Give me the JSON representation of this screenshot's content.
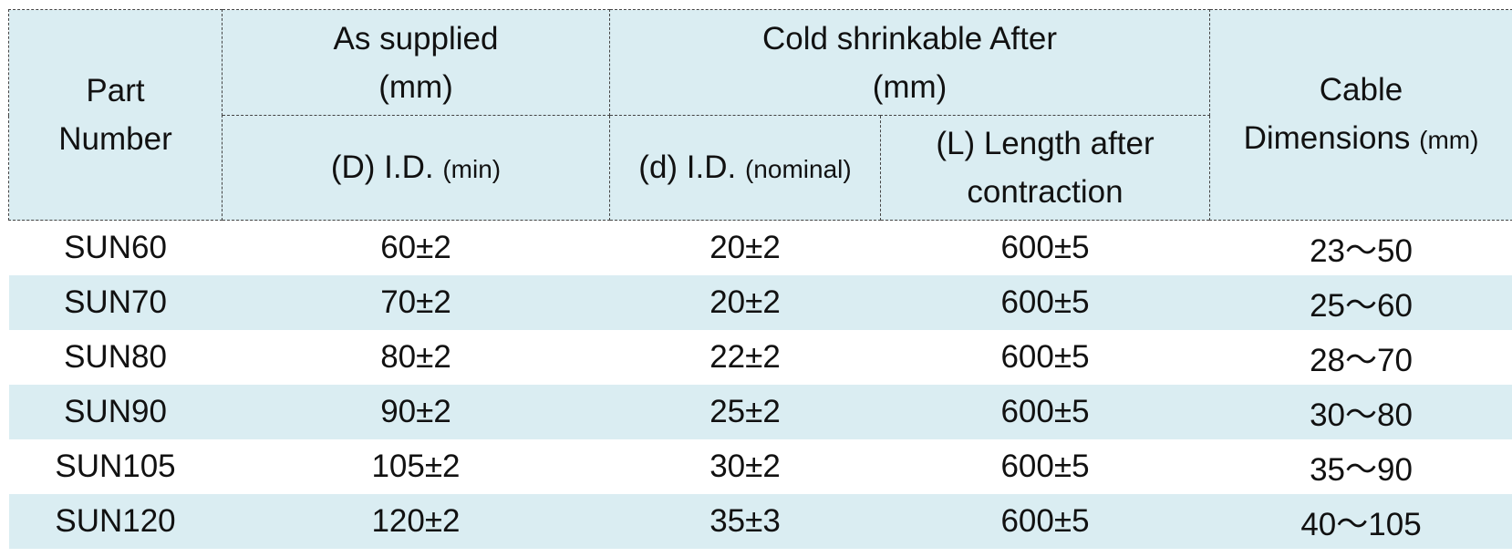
{
  "header": {
    "part_number": [
      "Part",
      "Number"
    ],
    "as_supplied": [
      "As supplied",
      "(mm)"
    ],
    "cold_shrinkable": [
      "Cold shrinkable After",
      "(mm)"
    ],
    "cable": [
      "Cable",
      "Dimensions",
      "(mm)"
    ],
    "d_upper": "(D) I.D.",
    "d_upper_unit": "(min)",
    "d_lower": "(d) I.D.",
    "d_lower_unit": "(nominal)",
    "length": [
      "(L) Length after",
      "contraction"
    ]
  },
  "colors": {
    "header_bg": "#daedf2",
    "stripe_bg": "#daedf2",
    "border": "#444444"
  },
  "rows": [
    {
      "part": "SUN60",
      "supplied": "60±2",
      "nominal": "20±2",
      "length": "600±5",
      "cable": "23～50"
    },
    {
      "part": "SUN70",
      "supplied": "70±2",
      "nominal": "20±2",
      "length": "600±5",
      "cable": "25～60"
    },
    {
      "part": "SUN80",
      "supplied": "80±2",
      "nominal": "22±2",
      "length": "600±5",
      "cable": "28～70"
    },
    {
      "part": "SUN90",
      "supplied": "90±2",
      "nominal": "25±2",
      "length": "600±5",
      "cable": "30～80"
    },
    {
      "part": "SUN105",
      "supplied": "105±2",
      "nominal": "30±2",
      "length": "600±5",
      "cable": "35～90"
    },
    {
      "part": "SUN120",
      "supplied": "120±2",
      "nominal": "35±3",
      "length": "600±5",
      "cable": "40～105"
    }
  ]
}
